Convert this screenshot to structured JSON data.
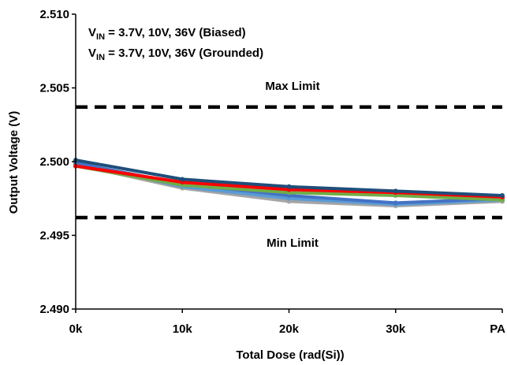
{
  "chart_data": {
    "type": "line",
    "title": "",
    "xlabel": "Total Dose (rad(Si))",
    "ylabel": "Output Voltage (V)",
    "categories": [
      "0k",
      "10k",
      "20k",
      "30k",
      "PA"
    ],
    "ylim": [
      2.49,
      2.51
    ],
    "yticks": [
      "2.490",
      "2.495",
      "2.500",
      "2.505",
      "2.510"
    ],
    "grid": false,
    "legend": {
      "position": "top-left",
      "lines": [
        {
          "prefix": "V",
          "sub": "IN",
          "text": " = 3.7V, 10V, 36V (Biased)"
        },
        {
          "prefix": "V",
          "sub": "IN",
          "text": " = 3.7V, 10V, 36V (Grounded)"
        }
      ]
    },
    "limits": [
      {
        "label": "Max Limit",
        "value": 2.5037
      },
      {
        "label": "Min Limit",
        "value": 2.4962
      }
    ],
    "series": [
      {
        "color": "#a6a6a6",
        "values": [
          2.4998,
          2.4982,
          2.4973,
          2.497,
          2.4973
        ]
      },
      {
        "color": "#5b9bd5",
        "values": [
          2.4999,
          2.4983,
          2.4975,
          2.4971,
          2.4974
        ]
      },
      {
        "color": "#4472c4",
        "values": [
          2.4999,
          2.4985,
          2.4977,
          2.4972,
          2.4975
        ]
      },
      {
        "color": "#70ad47",
        "values": [
          2.4997,
          2.4984,
          2.4979,
          2.4977,
          2.4974
        ]
      },
      {
        "color": "#ff0000",
        "values": [
          2.4997,
          2.4986,
          2.4981,
          2.4979,
          2.4976
        ]
      },
      {
        "color": "#1f4e79",
        "values": [
          2.5001,
          2.4988,
          2.4983,
          2.498,
          2.4977
        ]
      }
    ]
  }
}
